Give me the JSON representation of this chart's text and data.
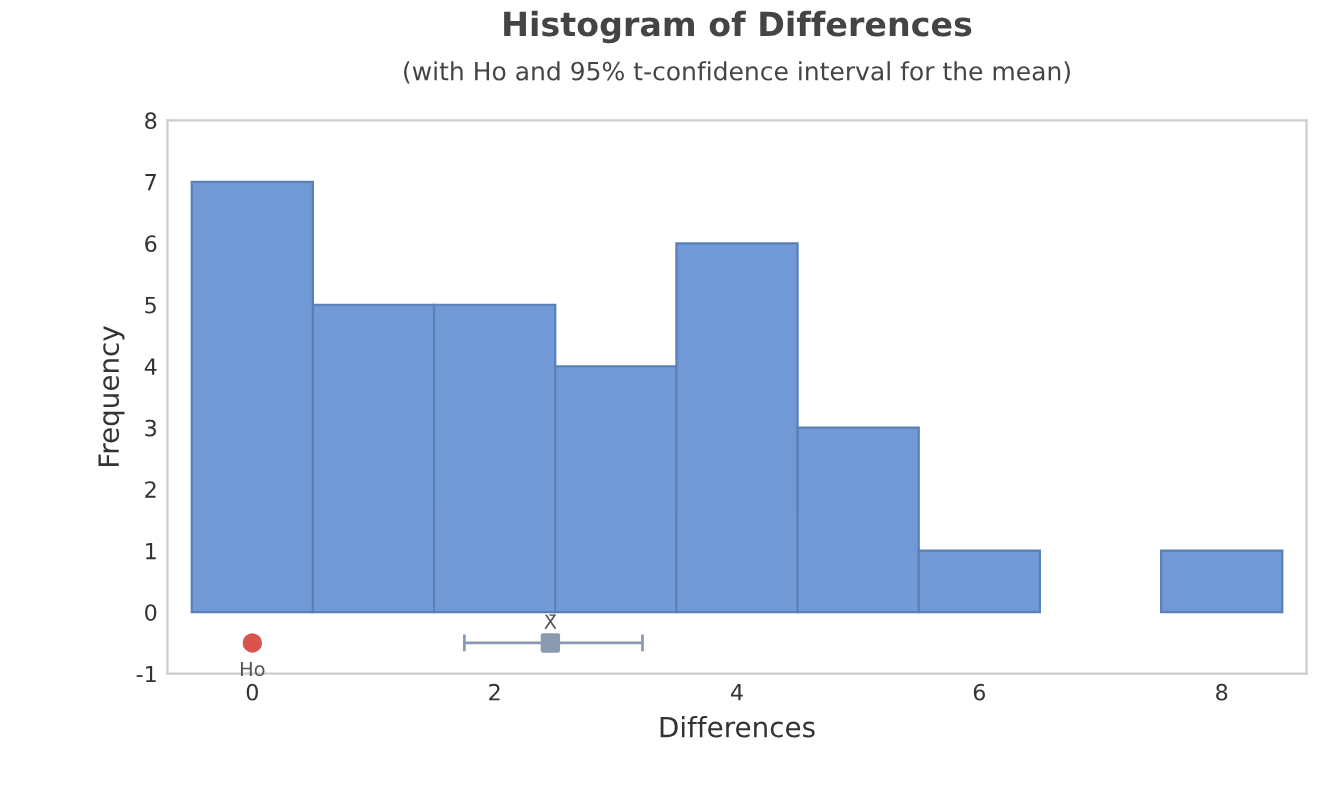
{
  "chart_data": {
    "type": "histogram",
    "title": "Histogram of Differences",
    "subtitle": "(with Ho and 95% t-confidence interval for the mean)",
    "xlabel": "Differences",
    "ylabel": "Frequency",
    "bins": [
      -0.5,
      0.5,
      1.5,
      2.5,
      3.5,
      4.5,
      5.5,
      6.5,
      7.5,
      8.5
    ],
    "values": [
      7,
      5,
      5,
      4,
      6,
      3,
      1,
      0,
      1
    ],
    "color": "#7199d6",
    "series": [
      {
        "type": "scatter",
        "x": [
          0
        ],
        "values": [
          -0.5
        ],
        "color": "#d9534f",
        "marker": "circle"
      },
      {
        "type": "scatter",
        "x": [
          2.46
        ],
        "values": [
          -0.5
        ],
        "xerrors": [
          [
            1.75,
            3.22
          ]
        ],
        "color": "#8a9bb0",
        "marker": "square"
      }
    ],
    "annotations": [
      {
        "text": "Ho",
        "x": 0,
        "y": -0.5
      },
      {
        "text": "X̄",
        "x": 2.46,
        "y": -0.5
      }
    ],
    "xlim": [
      -0.7,
      8.7
    ],
    "ylim": [
      -1,
      8
    ],
    "xticks": [
      0,
      2,
      4,
      6,
      8
    ],
    "yticks": [
      -1,
      0,
      1,
      2,
      3,
      4,
      5,
      6,
      7,
      8
    ],
    "grid": false,
    "legend": false
  }
}
